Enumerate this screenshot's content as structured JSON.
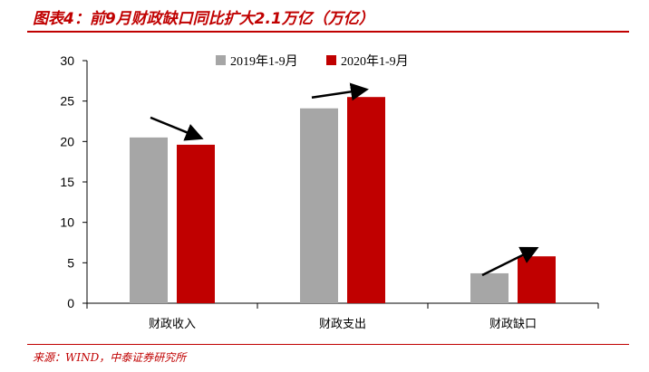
{
  "header": {
    "title": "图表4：前9月财政缺口同比扩大2.1万亿（万亿）"
  },
  "footer": {
    "source": "来源：WIND，中泰证券研究所"
  },
  "colors": {
    "accent": "#c00000",
    "series1": "#a6a6a6",
    "series2": "#c00000"
  },
  "chart_data": {
    "type": "bar",
    "title": "",
    "xlabel": "",
    "ylabel": "",
    "categories": [
      "财政收入",
      "财政支出",
      "财政缺口"
    ],
    "series": [
      {
        "name": "2019年1-9月",
        "values": [
          20.5,
          24.1,
          3.7
        ]
      },
      {
        "name": "2020年1-9月",
        "values": [
          19.6,
          25.5,
          5.8
        ]
      }
    ],
    "ylim": [
      0,
      30
    ],
    "yticks": [
      0,
      5,
      10,
      15,
      20,
      25,
      30
    ],
    "grid": false,
    "legend": "top-center",
    "annotations": [
      "down-arrow",
      "up-arrow",
      "up-arrow"
    ]
  }
}
